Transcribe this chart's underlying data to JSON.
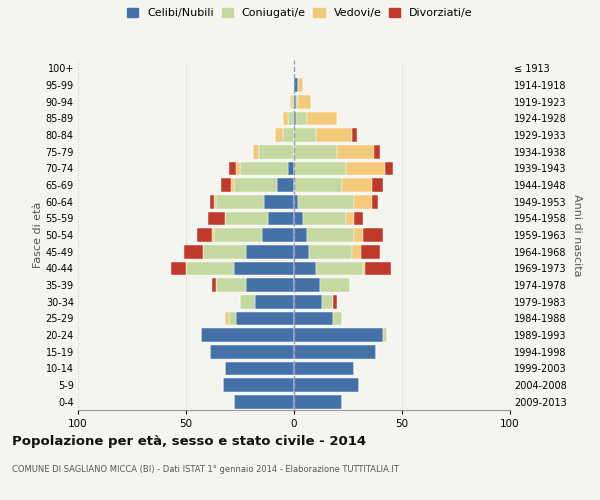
{
  "age_groups": [
    "0-4",
    "5-9",
    "10-14",
    "15-19",
    "20-24",
    "25-29",
    "30-34",
    "35-39",
    "40-44",
    "45-49",
    "50-54",
    "55-59",
    "60-64",
    "65-69",
    "70-74",
    "75-79",
    "80-84",
    "85-89",
    "90-94",
    "95-99",
    "100+"
  ],
  "birth_years": [
    "2009-2013",
    "2004-2008",
    "1999-2003",
    "1994-1998",
    "1989-1993",
    "1984-1988",
    "1979-1983",
    "1974-1978",
    "1969-1973",
    "1964-1968",
    "1959-1963",
    "1954-1958",
    "1949-1953",
    "1944-1948",
    "1939-1943",
    "1934-1938",
    "1929-1933",
    "1924-1928",
    "1919-1923",
    "1914-1918",
    "≤ 1913"
  ],
  "males": {
    "celibi": [
      28,
      33,
      32,
      39,
      43,
      27,
      18,
      22,
      28,
      22,
      15,
      12,
      14,
      8,
      3,
      0,
      0,
      0,
      0,
      0,
      0
    ],
    "coniugati": [
      0,
      0,
      0,
      0,
      0,
      3,
      7,
      14,
      22,
      20,
      22,
      20,
      22,
      20,
      22,
      16,
      5,
      3,
      1,
      0,
      0
    ],
    "vedovi": [
      0,
      0,
      0,
      0,
      0,
      2,
      0,
      0,
      0,
      0,
      1,
      0,
      1,
      1,
      2,
      3,
      4,
      2,
      1,
      0,
      0
    ],
    "divorziati": [
      0,
      0,
      0,
      0,
      0,
      0,
      0,
      2,
      7,
      9,
      7,
      8,
      2,
      5,
      3,
      0,
      0,
      0,
      0,
      0,
      0
    ]
  },
  "females": {
    "nubili": [
      22,
      30,
      28,
      38,
      41,
      18,
      13,
      12,
      10,
      7,
      6,
      4,
      2,
      0,
      0,
      0,
      0,
      1,
      1,
      2,
      0
    ],
    "coniugate": [
      0,
      0,
      0,
      0,
      2,
      4,
      5,
      14,
      22,
      20,
      22,
      20,
      26,
      22,
      24,
      20,
      10,
      5,
      1,
      0,
      0
    ],
    "vedove": [
      0,
      0,
      0,
      0,
      0,
      0,
      0,
      0,
      1,
      4,
      4,
      4,
      8,
      14,
      18,
      17,
      17,
      14,
      6,
      2,
      0
    ],
    "divorziate": [
      0,
      0,
      0,
      0,
      0,
      0,
      2,
      0,
      12,
      9,
      9,
      4,
      3,
      5,
      4,
      3,
      2,
      0,
      0,
      0,
      0
    ]
  },
  "colors": {
    "celibi": "#4472a8",
    "coniugati": "#c5d8a0",
    "vedovi": "#f5c97a",
    "divorziati": "#c0392b"
  },
  "title": "Popolazione per età, sesso e stato civile - 2014",
  "subtitle": "COMUNE DI SAGLIANO MICCA (BI) - Dati ISTAT 1° gennaio 2014 - Elaborazione TUTTITALIA.IT",
  "ylabel_left": "Fasce di età",
  "ylabel_right": "Anni di nascita",
  "xlim": 100,
  "legend_labels": [
    "Celibi/Nubili",
    "Coniugati/e",
    "Vedovi/e",
    "Divorziati/e"
  ],
  "background_color": "#f5f5f0"
}
